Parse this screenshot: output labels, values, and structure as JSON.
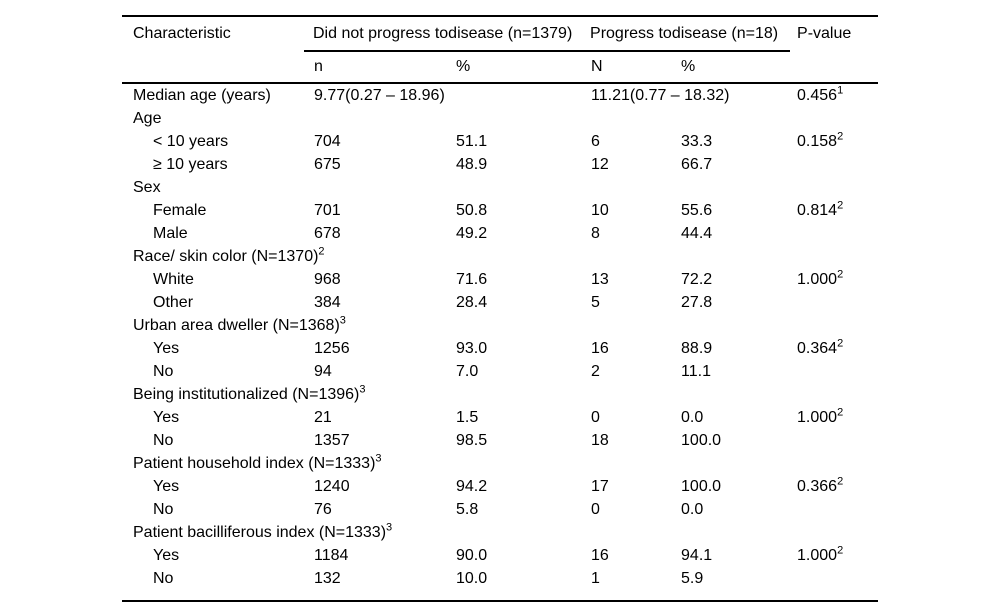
{
  "colors": {
    "background": "#ffffff",
    "text": "#000000",
    "rule": "#000000"
  },
  "table": {
    "header": {
      "characteristic": "Characteristic",
      "group1": "Did not progress todisease (n=1379)",
      "group2": "Progress todisease (n=18)",
      "p_value": "P-value",
      "sub_n1": "n",
      "sub_pct1": "%",
      "sub_n2": "N",
      "sub_pct2": "%"
    },
    "rows": [
      {
        "type": "span",
        "indent": 0,
        "label": "Median age (years)",
        "g1": "9.77(0.27 – 18.96)",
        "g2": "11.21(0.77 – 18.32)",
        "p": "0.456",
        "p_sup": "1"
      },
      {
        "type": "cat",
        "indent": 0,
        "label": "Age"
      },
      {
        "type": "data",
        "indent": 1,
        "label": "< 10 years",
        "n1": "704",
        "pct1": "51.1",
        "n2": "6",
        "pct2": "33.3",
        "p": "0.158",
        "p_sup": "2"
      },
      {
        "type": "data",
        "indent": 1,
        "label": "≥ 10 years",
        "n1": "675",
        "pct1": "48.9",
        "n2": "12",
        "pct2": "66.7"
      },
      {
        "type": "cat",
        "indent": 0,
        "label": "Sex"
      },
      {
        "type": "data",
        "indent": 1,
        "label": "Female",
        "n1": "701",
        "pct1": "50.8",
        "n2": "10",
        "pct2": "55.6",
        "p": "0.814",
        "p_sup": "2"
      },
      {
        "type": "data",
        "indent": 1,
        "label": "Male",
        "n1": "678",
        "pct1": "49.2",
        "n2": "8",
        "pct2": "44.4"
      },
      {
        "type": "cat",
        "indent": 0,
        "label": "Race/ skin color (N=1370)",
        "label_sup": "2"
      },
      {
        "type": "data",
        "indent": 1,
        "label": "White",
        "n1": "968",
        "pct1": "71.6",
        "n2": "13",
        "pct2": "72.2",
        "p": "1.000",
        "p_sup": "2"
      },
      {
        "type": "data",
        "indent": 1,
        "label": "Other",
        "n1": "384",
        "pct1": "28.4",
        "n2": "5",
        "pct2": "27.8"
      },
      {
        "type": "cat",
        "indent": 0,
        "label": "Urban area dweller (N=1368)",
        "label_sup": "3"
      },
      {
        "type": "data",
        "indent": 1,
        "label": "Yes",
        "n1": "1256",
        "pct1": "93.0",
        "n2": "16",
        "pct2": "88.9",
        "p": "0.364",
        "p_sup": "2"
      },
      {
        "type": "data",
        "indent": 1,
        "label": "No",
        "n1": "94",
        "pct1": "7.0",
        "n2": "2",
        "pct2": "11.1"
      },
      {
        "type": "cat",
        "indent": 0,
        "label": "Being institutionalized (N=1396)",
        "label_sup": "3"
      },
      {
        "type": "data",
        "indent": 1,
        "label": "Yes",
        "n1": "21",
        "pct1": "1.5",
        "n2": "0",
        "pct2": "0.0",
        "p": "1.000",
        "p_sup": "2"
      },
      {
        "type": "data",
        "indent": 1,
        "label": "No",
        "n1": "1357",
        "pct1": "98.5",
        "n2": "18",
        "pct2": "100.0"
      },
      {
        "type": "cat",
        "indent": 0,
        "label": "Patient household index (N=1333)",
        "label_sup": "3"
      },
      {
        "type": "data",
        "indent": 1,
        "label": "Yes",
        "n1": "1240",
        "pct1": "94.2",
        "n2": "17",
        "pct2": "100.0",
        "p": "0.366",
        "p_sup": "2"
      },
      {
        "type": "data",
        "indent": 1,
        "label": "No",
        "n1": "76",
        "pct1": "5.8",
        "n2": "0",
        "pct2": "0.0"
      },
      {
        "type": "cat",
        "indent": 0,
        "label": "Patient bacilliferous index (N=1333)",
        "label_sup": "3"
      },
      {
        "type": "data",
        "indent": 1,
        "label": "Yes",
        "n1": "1184",
        "pct1": "90.0",
        "n2": "16",
        "pct2": "94.1",
        "p": "1.000",
        "p_sup": "2"
      },
      {
        "type": "data",
        "indent": 1,
        "label": "No",
        "n1": "132",
        "pct1": "10.0",
        "n2": "1",
        "pct2": "5.9"
      }
    ]
  }
}
